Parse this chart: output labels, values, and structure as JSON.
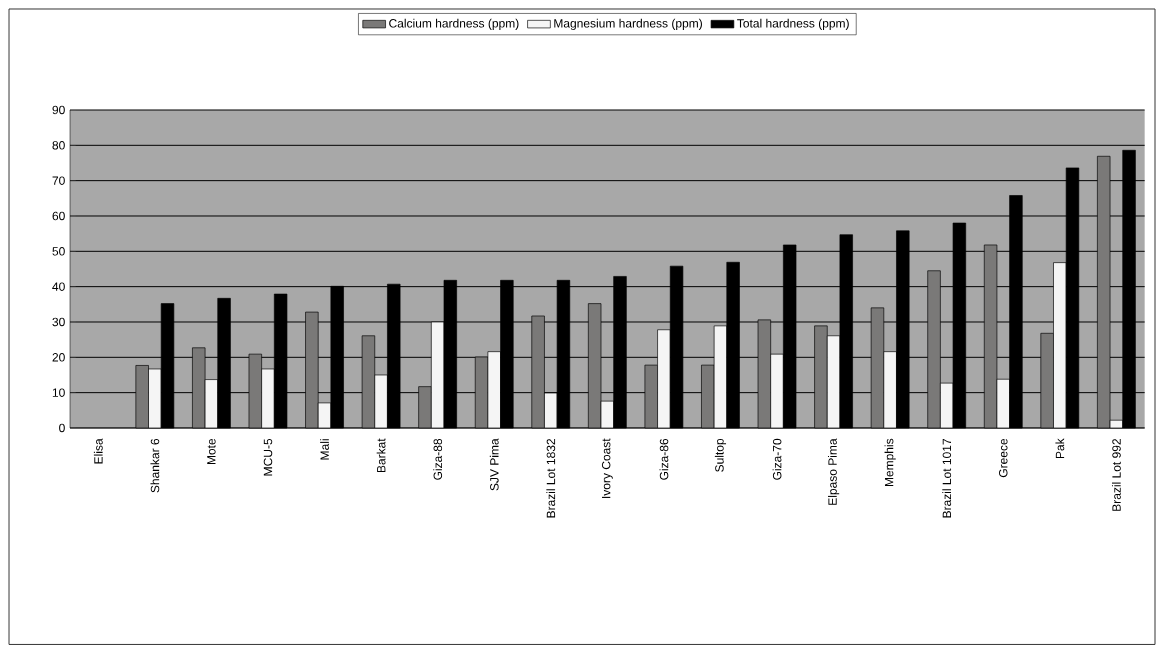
{
  "chart_data": {
    "type": "bar",
    "categories": [
      "Elisa",
      "Shankar 6",
      "Mote",
      "MCU-5",
      "Mali",
      "Barkat",
      "Giza-88",
      "SJV Pima",
      "Brazil Lot 1832",
      "Ivory Coast",
      "Giza-86",
      "Sultop",
      "Giza-70",
      "Elpaso Pima",
      "Memphis",
      "Brazil Lot 1017",
      "Greece",
      "Pak",
      "Brazil Lot 992"
    ],
    "series": [
      {
        "name": "Calcium hardness (ppm)",
        "color": "#7a7978",
        "values": [
          null,
          17.7,
          22.7,
          20.9,
          32.8,
          26.1,
          11.7,
          20.1,
          31.7,
          35.2,
          17.8,
          17.8,
          30.6,
          28.9,
          34,
          44.5,
          51.8,
          26.8,
          76.9
        ]
      },
      {
        "name": "Magnesium hardness (ppm)",
        "color": "#f5f5f5",
        "values": [
          null,
          16.7,
          13.7,
          16.7,
          7.1,
          15,
          30,
          21.6,
          9.9,
          7.6,
          27.8,
          28.9,
          20.9,
          26.1,
          21.6,
          12.7,
          13.8,
          46.8,
          2.2
        ]
      },
      {
        "name": "Total hardness (ppm)",
        "color": "#000000",
        "values": [
          null,
          35.2,
          36.7,
          37.9,
          40.1,
          40.7,
          41.8,
          41.8,
          41.8,
          42.9,
          45.8,
          46.9,
          51.8,
          54.7,
          55.8,
          58,
          65.8,
          73.6,
          78.6
        ]
      }
    ],
    "ylim": [
      0,
      90
    ],
    "yticks": [
      0,
      10,
      20,
      30,
      40,
      50,
      60,
      70,
      80,
      90
    ],
    "grid": "y",
    "legend": "top"
  }
}
